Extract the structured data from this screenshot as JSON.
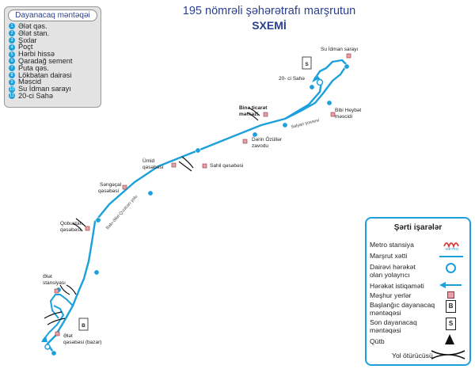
{
  "title": {
    "line1": "195 nömrəli şəhərətrafı marşrutun",
    "line2": "SXEMİ"
  },
  "stops_panel": {
    "heading": "Dayanacaq məntəqəi",
    "stops": [
      {
        "num": "1",
        "name": "Ələt qəs."
      },
      {
        "num": "2",
        "name": "Ələt stan."
      },
      {
        "num": "3",
        "name": "Şıxlar"
      },
      {
        "num": "4",
        "name": "Poçt"
      },
      {
        "num": "5",
        "name": "Hərbi hissə"
      },
      {
        "num": "6",
        "name": "Qaradağ sement"
      },
      {
        "num": "7",
        "name": "Puta qəs."
      },
      {
        "num": "8",
        "name": "Lökbatan dairəsi"
      },
      {
        "num": "9",
        "name": "Məscid"
      },
      {
        "num": "10",
        "name": "Su İdman sarayı"
      },
      {
        "num": "11",
        "name": "20-ci Sahə"
      }
    ]
  },
  "map_labels": {
    "su_idman": "Su İdman sarayı",
    "ci_sahe": "20- ci Sahə",
    "bina1": "Binə ticarət",
    "bina2": "mərkəzi",
    "bibi1": "Bibi Heybət",
    "bibi2": "məscidi",
    "derin1": "Dərin Özüllər",
    "derin2": "zavodu",
    "salyan": "Salyan şossesi",
    "umid1": "Ümid",
    "umid2": "qəsəbəsi",
    "sahil": "Sahil qəsəbəsi",
    "senge1": "Səngəçal",
    "senge2": "qəsəbəsi",
    "baku_road": "Bakı-Ələt-Qızılcan yolu",
    "qob1": "Qobustan",
    "qob2": "qəsəbəsi",
    "elet_st1": "Ələt",
    "elet_st2": "stansiyası",
    "elet_q1": "Ələt",
    "elet_q2": "qəsəbəsi (bazar)",
    "start_letter": "B",
    "end_letter": "S"
  },
  "legend": {
    "title": "Şərti işarələr",
    "items": [
      "Metro stansiya",
      "Marşrut xətti",
      "Dairəvi hərəkət",
      "olan yolayrıcı",
      "Hərəkət istiqaməti",
      "Məşhur yerlər",
      "Başlanğıc dayanacaq",
      "məntəqəsi",
      "Son dayanacaq",
      "məntəqəsi",
      "Qütb",
      "Yol ötürücüsü"
    ],
    "metro_text": "METRO",
    "start_sym": "B",
    "end_sym": "S"
  },
  "colors": {
    "route": "#1ba0dc",
    "title": "#2a3f8f",
    "landmark": "#e8a0a6"
  }
}
